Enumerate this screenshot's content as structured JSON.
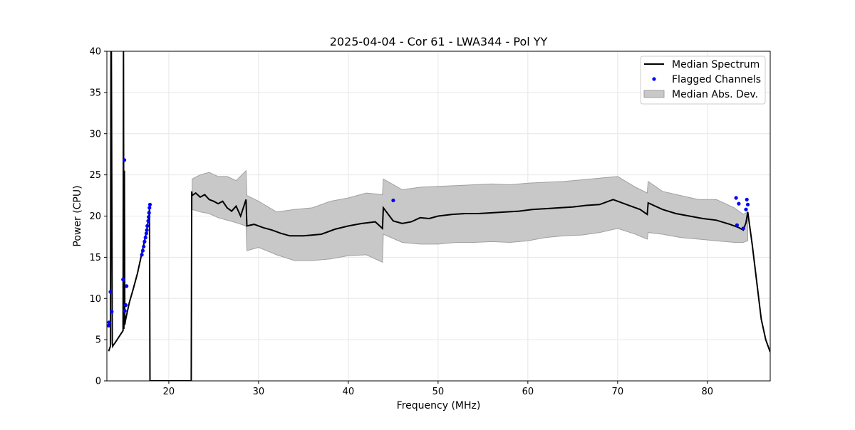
{
  "chart_data": {
    "type": "line",
    "title": "2025-04-04 - Cor 61 - LWA344 - Pol YY",
    "xlabel": "Frequency (MHz)",
    "ylabel": "Power (CPU)",
    "xlim": [
      13.1,
      87.0
    ],
    "ylim": [
      0,
      40
    ],
    "xticks": [
      20,
      30,
      40,
      50,
      60,
      70,
      80
    ],
    "yticks": [
      0,
      5,
      10,
      15,
      20,
      25,
      30,
      35,
      40
    ],
    "grid": true,
    "legend_position": "top-right",
    "legend": [
      {
        "label": "Median Spectrum",
        "kind": "line"
      },
      {
        "label": "Flagged Channels",
        "kind": "point"
      },
      {
        "label": "Median Abs. Dev.",
        "kind": "band"
      }
    ],
    "colors": {
      "median": "#000000",
      "flagged": "#0000ff",
      "band_fill": "#c8c8c8",
      "band_edge": "#a0a0a0",
      "grid": "#e6e6e6"
    },
    "series": [
      {
        "name": "Median Spectrum",
        "x": [
          13.3,
          13.5,
          13.55,
          13.6,
          13.7,
          13.75,
          13.8,
          14.0,
          14.3,
          14.6,
          14.9,
          14.95,
          15.0,
          15.05,
          15.1,
          15.15,
          15.2,
          15.3,
          15.6,
          16.0,
          16.5,
          17.0,
          17.5,
          17.8,
          17.85,
          17.9,
          18.0,
          22.5,
          22.55,
          22.6,
          23.0,
          23.5,
          24.0,
          24.5,
          25.0,
          25.5,
          26.0,
          26.5,
          27.0,
          27.5,
          28.0,
          28.6,
          28.7,
          29.5,
          30.5,
          31.5,
          32.5,
          33.5,
          35.0,
          37.0,
          38.5,
          40.0,
          41.5,
          43.0,
          43.8,
          43.9,
          45.0,
          46.0,
          47.0,
          48.0,
          49.0,
          50.0,
          51.5,
          53.0,
          54.5,
          56.0,
          57.5,
          59.0,
          60.5,
          62.0,
          63.5,
          65.0,
          66.5,
          68.0,
          69.5,
          71.0,
          72.5,
          73.3,
          73.4,
          75.0,
          76.5,
          78.0,
          79.5,
          81.0,
          82.5,
          83.5,
          84.0,
          84.3,
          84.5,
          85.0,
          85.5,
          86.0,
          86.5,
          87.0
        ],
        "y": [
          3.6,
          4.2,
          40,
          40,
          4.5,
          4.2,
          4.3,
          4.6,
          5.1,
          5.6,
          6.1,
          40,
          6.3,
          25.5,
          6.8,
          7.2,
          7.5,
          8.0,
          9.5,
          11.0,
          13.0,
          15.5,
          18.0,
          20.0,
          21.0,
          0.0,
          0.0,
          0.0,
          23.0,
          22.5,
          22.8,
          22.3,
          22.6,
          22.0,
          21.8,
          21.5,
          21.8,
          21.0,
          20.6,
          21.2,
          20.0,
          22.0,
          18.8,
          19.0,
          18.6,
          18.3,
          17.9,
          17.6,
          17.6,
          17.8,
          18.4,
          18.8,
          19.1,
          19.3,
          18.5,
          21.0,
          19.4,
          19.1,
          19.3,
          19.8,
          19.7,
          20.0,
          20.2,
          20.3,
          20.3,
          20.4,
          20.5,
          20.6,
          20.8,
          20.9,
          21.0,
          21.1,
          21.3,
          21.4,
          22.0,
          21.4,
          20.8,
          20.2,
          21.6,
          20.8,
          20.3,
          20.0,
          19.7,
          19.5,
          19.0,
          18.6,
          18.3,
          19.2,
          20.5,
          16.5,
          12.0,
          7.5,
          5.0,
          3.5
        ]
      },
      {
        "name": "Median Abs. Dev.",
        "x": [
          22.6,
          23.5,
          24.5,
          25.5,
          26.5,
          27.5,
          28.6,
          28.7,
          30.0,
          32.0,
          34.0,
          36.0,
          38.0,
          40.0,
          42.0,
          43.8,
          43.9,
          46.0,
          48.0,
          50.0,
          52.0,
          54.0,
          56.0,
          58.0,
          60.0,
          62.0,
          64.0,
          66.0,
          68.0,
          70.0,
          72.0,
          73.3,
          73.4,
          75.0,
          77.0,
          79.0,
          81.0,
          83.0,
          84.0,
          84.5
        ],
        "upper": [
          24.5,
          25.0,
          25.3,
          24.8,
          24.8,
          24.3,
          25.5,
          22.5,
          21.8,
          20.5,
          20.8,
          21.0,
          21.8,
          22.2,
          22.8,
          22.6,
          24.5,
          23.2,
          23.5,
          23.6,
          23.7,
          23.8,
          23.9,
          23.8,
          24.0,
          24.1,
          24.2,
          24.4,
          24.6,
          24.8,
          23.5,
          22.8,
          24.2,
          23.0,
          22.5,
          22.0,
          22.0,
          21.0,
          20.2,
          20.5
        ],
        "lower": [
          20.8,
          20.5,
          20.3,
          19.8,
          19.5,
          19.2,
          18.8,
          15.8,
          16.2,
          15.3,
          14.6,
          14.6,
          14.8,
          15.2,
          15.3,
          14.4,
          17.8,
          16.8,
          16.6,
          16.6,
          16.8,
          16.8,
          16.9,
          16.8,
          17.0,
          17.4,
          17.6,
          17.7,
          18.0,
          18.5,
          17.8,
          17.2,
          18.0,
          17.8,
          17.4,
          17.2,
          17.0,
          16.8,
          16.8,
          17.0
        ]
      },
      {
        "name": "Flagged Channels",
        "x": [
          13.3,
          13.35,
          13.5,
          13.65,
          14.9,
          15.05,
          15.1,
          15.2,
          15.3,
          17.0,
          17.1,
          17.2,
          17.3,
          17.4,
          17.5,
          17.55,
          17.6,
          17.7,
          17.75,
          17.8,
          17.85,
          17.9,
          45.0,
          83.2,
          83.3,
          83.5,
          84.0,
          84.3,
          84.4,
          84.5
        ],
        "y": [
          6.7,
          7.1,
          10.8,
          8.4,
          12.3,
          26.8,
          8.5,
          9.2,
          11.5,
          15.3,
          15.8,
          16.3,
          16.9,
          17.4,
          17.9,
          18.3,
          18.8,
          19.4,
          19.9,
          20.4,
          21.0,
          21.4,
          21.9,
          22.2,
          18.9,
          21.5,
          18.5,
          20.8,
          22.0,
          21.4
        ]
      }
    ]
  }
}
